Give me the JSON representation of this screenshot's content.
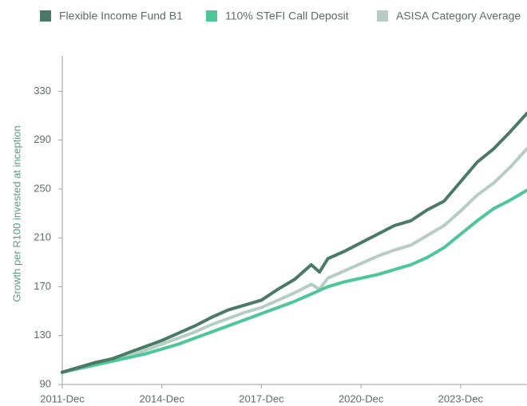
{
  "chart_data": {
    "type": "line",
    "y_label": "Growth per R100 invested at inception",
    "x": [
      "2011-12",
      "2012-06",
      "2012-12",
      "2013-06",
      "2013-12",
      "2014-06",
      "2014-12",
      "2015-06",
      "2015-12",
      "2016-06",
      "2016-12",
      "2017-06",
      "2017-12",
      "2018-06",
      "2018-12",
      "2019-06",
      "2019-09",
      "2019-12",
      "2020-06",
      "2020-12",
      "2021-06",
      "2021-12",
      "2022-06",
      "2022-12",
      "2023-06",
      "2023-12",
      "2024-06",
      "2024-12",
      "2025-06",
      "2025-12"
    ],
    "series": [
      {
        "name": "Flexible Income Fund B1",
        "color": "#4a7a66",
        "values": [
          100,
          104,
          108,
          111,
          116,
          121,
          126,
          132,
          138,
          145,
          151,
          155,
          159,
          168,
          176,
          188,
          182,
          193,
          199,
          206,
          213,
          220,
          224,
          233,
          240,
          256,
          272,
          283,
          297,
          312
        ]
      },
      {
        "name": "110% STeFI Call Deposit",
        "color": "#4dc698",
        "values": [
          100,
          103,
          106,
          109,
          112,
          115,
          119,
          123,
          128,
          133,
          138,
          143,
          148,
          153,
          158,
          164,
          167,
          170,
          174,
          177,
          180,
          184,
          188,
          194,
          202,
          213,
          224,
          234,
          241,
          249
        ]
      },
      {
        "name": "ASISA Category Average",
        "color": "#b5cdc3",
        "values": [
          100,
          104,
          107,
          110,
          113,
          118,
          123,
          128,
          133,
          139,
          144,
          149,
          153,
          159,
          165,
          172,
          168,
          177,
          183,
          189,
          195,
          200,
          204,
          212,
          220,
          232,
          245,
          255,
          268,
          283
        ]
      }
    ],
    "xlim": [
      "2011-12",
      "2025-12"
    ],
    "xticks": [
      {
        "value": "2011-12",
        "label": "2011-Dec"
      },
      {
        "value": "2014-12",
        "label": "2014-Dec"
      },
      {
        "value": "2017-12",
        "label": "2017-Dec"
      },
      {
        "value": "2020-12",
        "label": "2020-Dec"
      },
      {
        "value": "2023-12",
        "label": "2023-Dec"
      }
    ],
    "ylim": [
      90,
      359
    ],
    "yticks": [
      90,
      130,
      170,
      210,
      250,
      290,
      330
    ],
    "grid": false,
    "legend": "top"
  }
}
